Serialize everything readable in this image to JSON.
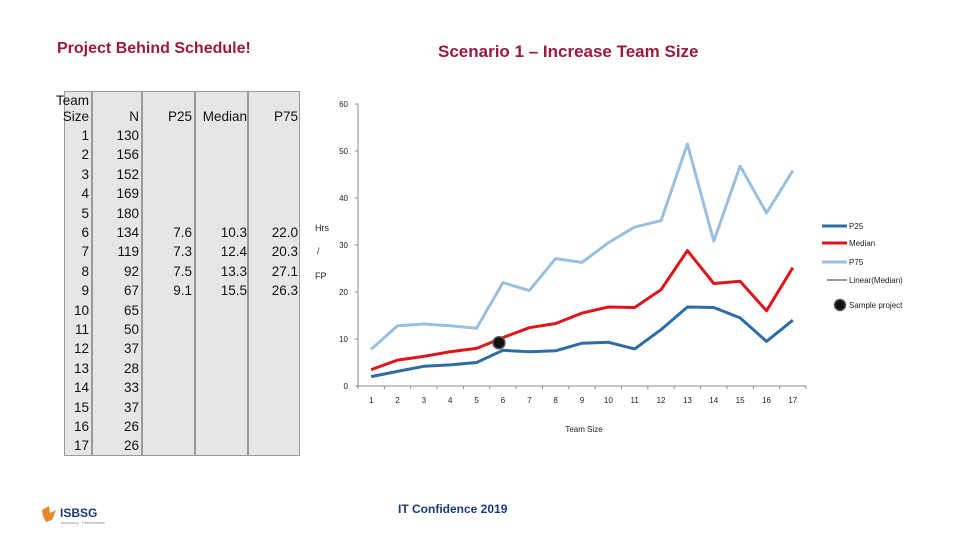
{
  "titles": {
    "left": "Project Behind Schedule!",
    "right": "Scenario 1 – Increase Team Size"
  },
  "table": {
    "headers": {
      "team_size": [
        "Team",
        "Size"
      ],
      "n": "N",
      "p25": "P25",
      "median": "Median",
      "p75": "P75"
    },
    "team_size": [
      "1",
      "2",
      "3",
      "4",
      "5",
      "6",
      "7",
      "8",
      "9",
      "10",
      "11",
      "12",
      "13",
      "14",
      "15",
      "16",
      "17"
    ],
    "n": [
      "130",
      "156",
      "152",
      "169",
      "180",
      "134",
      "119",
      "92",
      "67",
      "65",
      "50",
      "37",
      "28",
      "33",
      "37",
      "26",
      "26"
    ],
    "p25": [
      "7.6",
      "7.3",
      "7.5",
      "9.1"
    ],
    "median": [
      "10.3",
      "12.4",
      "13.3",
      "15.5"
    ],
    "p75": [
      "22.0",
      "20.3",
      "27.1",
      "26.3"
    ]
  },
  "chart_data": {
    "type": "line",
    "x": [
      1,
      2,
      3,
      4,
      5,
      6,
      7,
      8,
      9,
      10,
      11,
      12,
      13,
      14,
      15,
      16,
      17
    ],
    "xlabel": "Team Size",
    "ylabel": [
      "Hrs",
      "/",
      "FP"
    ],
    "ylim": [
      0,
      60
    ],
    "yticks": [
      0,
      10,
      20,
      30,
      40,
      50,
      60
    ],
    "legend_position": "right",
    "series": [
      {
        "name": "P25",
        "color": "#2e6da4",
        "values": [
          2.0,
          3.1,
          4.2,
          4.5,
          5.0,
          7.6,
          7.3,
          7.5,
          9.1,
          9.3,
          7.9,
          12.0,
          16.8,
          16.7,
          14.5,
          9.5,
          14.0
        ]
      },
      {
        "name": "Median",
        "color": "#e0141b",
        "values": [
          3.5,
          5.5,
          6.3,
          7.3,
          8.0,
          10.3,
          12.4,
          13.3,
          15.5,
          16.8,
          16.7,
          20.5,
          28.8,
          21.8,
          22.3,
          16.0,
          25.2
        ]
      },
      {
        "name": "P75",
        "color": "#9bbfdf",
        "values": [
          7.8,
          12.8,
          13.2,
          12.8,
          12.3,
          22.0,
          20.3,
          27.1,
          26.3,
          30.5,
          33.8,
          35.2,
          51.5,
          30.8,
          46.8,
          36.8,
          45.8
        ]
      }
    ],
    "trendline": {
      "name": "Linear(Median)"
    },
    "marker": {
      "name": "Sample project",
      "x": 6,
      "y": 9.2
    }
  },
  "footer": {
    "text": "IT Confidence 2019",
    "logo": "ISBSG",
    "logo_tagline": "Improving · Performance"
  }
}
